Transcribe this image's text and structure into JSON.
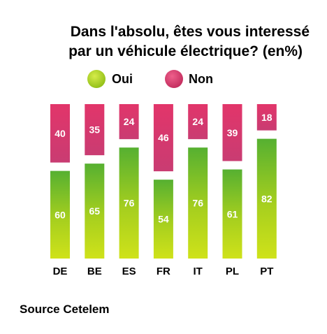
{
  "chart_data": {
    "type": "bar",
    "stacked": true,
    "title": "Dans l'absolu, êtes vous interessé par un véhicule électrique? (en%)",
    "title_lines": [
      "Dans l'absolu, êtes vous interessé",
      "par un véhicule électrique? (en%)"
    ],
    "categories": [
      "DE",
      "BE",
      "ES",
      "FR",
      "IT",
      "PL",
      "PT"
    ],
    "series": [
      {
        "name": "Oui",
        "color": "#a6cf1e",
        "values": [
          60,
          65,
          76,
          54,
          76,
          61,
          82
        ]
      },
      {
        "name": "Non",
        "color": "#d63f6e",
        "values": [
          40,
          35,
          24,
          46,
          24,
          39,
          18
        ]
      }
    ],
    "ylim": [
      0,
      100
    ],
    "grid": false,
    "legend_position": "top",
    "xlabel": "",
    "ylabel": ""
  },
  "source": "Source Cetelem"
}
